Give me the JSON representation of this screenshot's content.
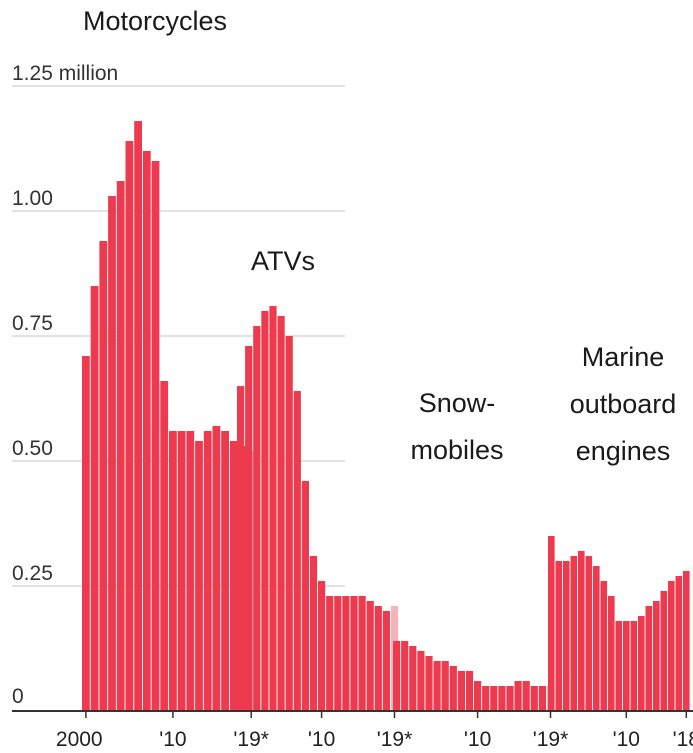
{
  "chart_data": {
    "type": "bar",
    "ylim": [
      0,
      1.25
    ],
    "y_ticks": [
      {
        "value": 1.25,
        "label": "1.25 million"
      },
      {
        "value": 1.0,
        "label": "1.00"
      },
      {
        "value": 0.75,
        "label": "0.75"
      },
      {
        "value": 0.5,
        "label": "0.50"
      },
      {
        "value": 0.25,
        "label": "0.25"
      },
      {
        "value": 0,
        "label": "0"
      }
    ],
    "grid": true,
    "colors": {
      "bar": "#ee3a4e",
      "estimate": "#f5b3ba",
      "grid": "#d8d8d8",
      "axis": "#333333"
    },
    "series": [
      {
        "name": "Motorcycles",
        "x": [
          2000,
          2001,
          2002,
          2003,
          2004,
          2005,
          2006,
          2007,
          2008,
          2009,
          2010,
          2011,
          2012,
          2013,
          2014,
          2015,
          2016,
          2017,
          2018,
          2019
        ],
        "values": [
          0.71,
          0.85,
          0.94,
          1.03,
          1.06,
          1.14,
          1.18,
          1.12,
          1.1,
          0.66,
          0.56,
          0.56,
          0.56,
          0.54,
          0.56,
          0.57,
          0.56,
          0.54,
          0.53,
          0.52
        ],
        "estimated_last": true,
        "x_tick_labels": [
          {
            "x": 2000,
            "label": "2000"
          },
          {
            "x": 2010,
            "label": "'10"
          },
          {
            "x": 2019,
            "label": "'19*"
          }
        ]
      },
      {
        "name": "ATVs",
        "x": [
          2000,
          2001,
          2002,
          2003,
          2004,
          2005,
          2006,
          2007,
          2008,
          2009,
          2010,
          2011,
          2012,
          2013,
          2014,
          2015,
          2016,
          2017,
          2018,
          2019
        ],
        "values": [
          0.65,
          0.73,
          0.77,
          0.8,
          0.81,
          0.79,
          0.75,
          0.64,
          0.46,
          0.31,
          0.26,
          0.23,
          0.23,
          0.23,
          0.23,
          0.23,
          0.22,
          0.21,
          0.2,
          0.21
        ],
        "estimated_last": true,
        "x_tick_labels": [
          {
            "x": 2010,
            "label": "'10"
          },
          {
            "x": 2019,
            "label": "'19*"
          }
        ]
      },
      {
        "name_lines": [
          "Snow-",
          "mobiles"
        ],
        "x": [
          2000,
          2001,
          2002,
          2003,
          2004,
          2005,
          2006,
          2007,
          2008,
          2009,
          2010,
          2011,
          2012,
          2013,
          2014,
          2015,
          2016,
          2017,
          2018,
          2019
        ],
        "values": [
          0.14,
          0.14,
          0.13,
          0.12,
          0.11,
          0.1,
          0.1,
          0.09,
          0.08,
          0.08,
          0.06,
          0.05,
          0.05,
          0.05,
          0.05,
          0.06,
          0.06,
          0.05,
          0.05,
          0.05
        ],
        "estimated_last": true,
        "x_tick_labels": [
          {
            "x": 2010,
            "label": "'10"
          },
          {
            "x": 2019,
            "label": "'19*"
          }
        ]
      },
      {
        "name_lines": [
          "Marine",
          "outboard",
          "engines"
        ],
        "x": [
          2000,
          2001,
          2002,
          2003,
          2004,
          2005,
          2006,
          2007,
          2008,
          2009,
          2010,
          2011,
          2012,
          2013,
          2014,
          2015,
          2016,
          2017,
          2018
        ],
        "values": [
          0.35,
          0.3,
          0.3,
          0.31,
          0.32,
          0.31,
          0.29,
          0.26,
          0.23,
          0.18,
          0.18,
          0.18,
          0.19,
          0.21,
          0.22,
          0.24,
          0.26,
          0.27,
          0.28
        ],
        "estimated_last": false,
        "x_tick_labels": [
          {
            "x": 2010,
            "label": "'10"
          },
          {
            "x": 2018,
            "label": "'18"
          }
        ]
      }
    ]
  }
}
